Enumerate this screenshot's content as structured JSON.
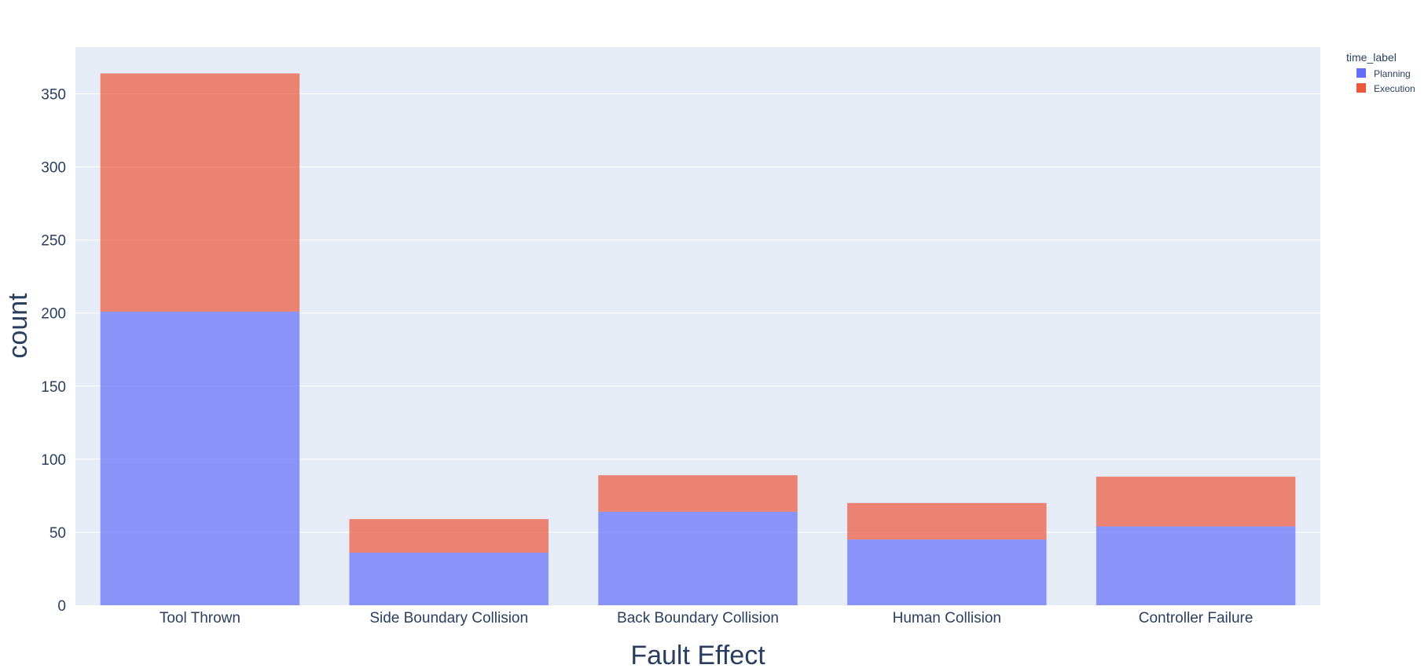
{
  "chart_data": {
    "type": "bar",
    "barmode": "stack",
    "categories": [
      "Tool Thrown",
      "Side Boundary Collision",
      "Back Boundary Collision",
      "Human Collision",
      "Controller Failure"
    ],
    "series": [
      {
        "name": "Planning",
        "values": [
          201,
          36,
          64,
          45,
          54
        ],
        "color": "#636efa"
      },
      {
        "name": "Execution",
        "values": [
          163,
          23,
          25,
          25,
          34
        ],
        "color": "#ef553b"
      }
    ],
    "xlabel": "Fault Effect",
    "ylabel": "count",
    "ylim": [
      0,
      382
    ],
    "yticks": [
      0,
      50,
      100,
      150,
      200,
      250,
      300,
      350
    ],
    "grid": true,
    "legend": {
      "title": "time_label",
      "position": "top-right"
    },
    "colors": {
      "plot_bg": "#e5ecf6",
      "grid": "#ffffff",
      "text": "#2a3f5f"
    }
  }
}
